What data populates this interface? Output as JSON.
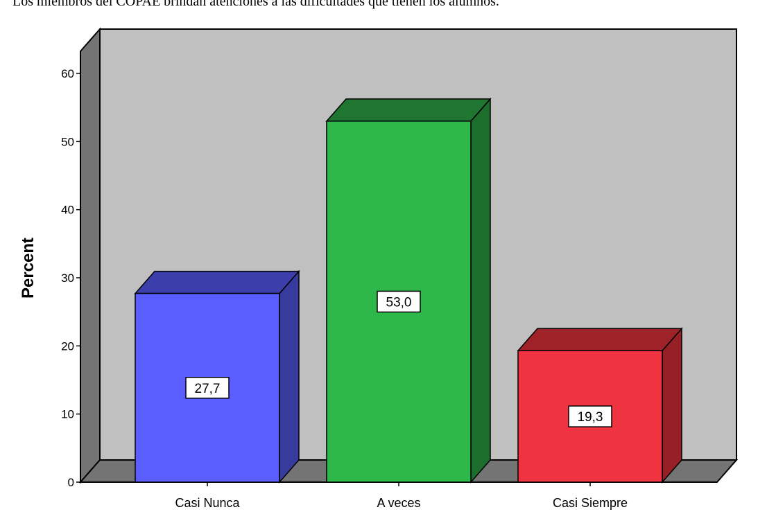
{
  "chart_data": {
    "type": "bar",
    "title": "Los miembros del COPAE brindan atenciones a las dificultades que tienen los alumnos.",
    "ylabel": "Percent",
    "xlabel": "",
    "categories": [
      "Casi Nunca",
      "A veces",
      "Casi Siempre"
    ],
    "values": [
      27.7,
      53.0,
      19.3
    ],
    "value_labels": [
      "27,7",
      "53,0",
      "19,3"
    ],
    "yticks": [
      "0",
      "10",
      "20",
      "30",
      "40",
      "50",
      "60"
    ],
    "ylim": [
      0,
      60
    ],
    "grid": false,
    "legend": "none",
    "colors": {
      "bars": [
        "#5a5eff",
        "#2fb84a",
        "#ef3340"
      ],
      "bars_side": [
        "#383b9e",
        "#1d6e2c",
        "#952026"
      ],
      "bars_top": [
        "#3c3fab",
        "#1f7630",
        "#9f2229"
      ],
      "wall": "#c0c0c0",
      "side_wall": "#747474",
      "floor": "#747474"
    }
  }
}
